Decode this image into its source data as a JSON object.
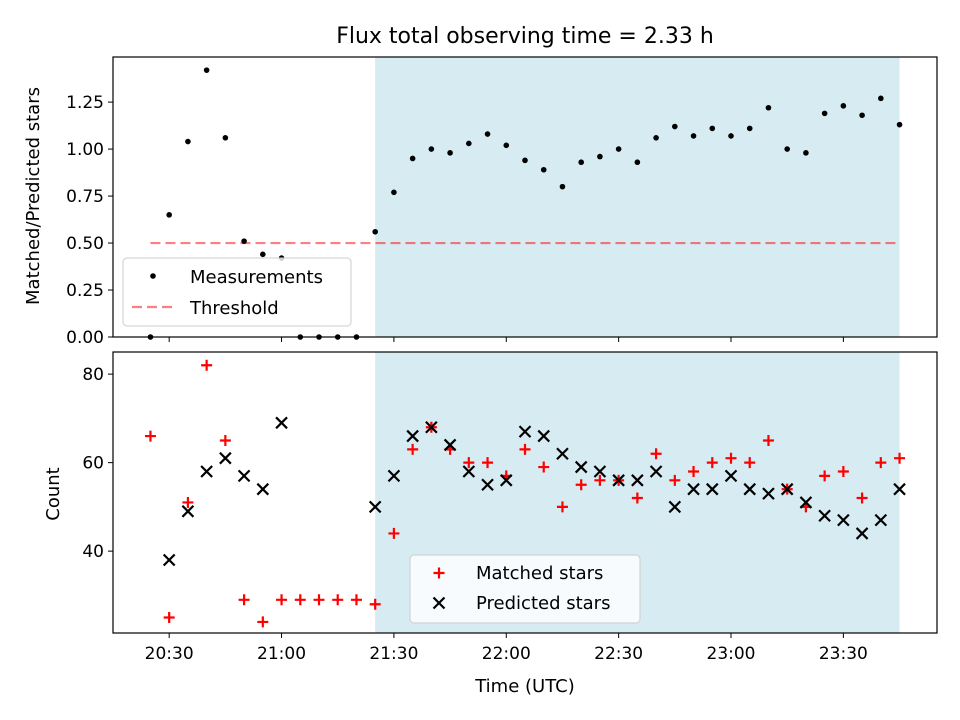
{
  "chart_data": [
    {
      "type": "scatter",
      "title": "Flux total observing time = 2.33 h",
      "xlabel": "",
      "ylabel": "Matched/Predicted stars",
      "x_ticks": [
        "20:30",
        "21:00",
        "21:30",
        "22:00",
        "22:30",
        "23:00",
        "23:30"
      ],
      "ylim": [
        0,
        1.49
      ],
      "y_ticks": [
        "0.00",
        "0.25",
        "0.50",
        "0.75",
        "1.00",
        "1.25"
      ],
      "shaded_interval": [
        "21:25",
        "23:45"
      ],
      "threshold": 0.5,
      "legend": {
        "position": "lower-left",
        "entries": [
          "Measurements",
          "Threshold"
        ]
      },
      "series": [
        {
          "name": "Measurements",
          "x": [
            "20:25",
            "20:30",
            "20:35",
            "20:40",
            "20:45",
            "20:50",
            "20:55",
            "21:00",
            "21:05",
            "21:10",
            "21:15",
            "21:20",
            "21:25",
            "21:30",
            "21:35",
            "21:40",
            "21:45",
            "21:50",
            "21:55",
            "22:00",
            "22:05",
            "22:10",
            "22:15",
            "22:20",
            "22:25",
            "22:30",
            "22:35",
            "22:40",
            "22:45",
            "22:50",
            "22:55",
            "23:00",
            "23:05",
            "23:10",
            "23:15",
            "23:20",
            "23:25",
            "23:30",
            "23:35",
            "23:40",
            "23:45"
          ],
          "values": [
            0.0,
            0.65,
            1.04,
            1.42,
            1.06,
            0.51,
            0.44,
            0.42,
            0.0,
            0.0,
            0.0,
            0.0,
            0.56,
            0.77,
            0.95,
            1.0,
            0.98,
            1.03,
            1.08,
            1.02,
            0.94,
            0.89,
            0.8,
            0.93,
            0.96,
            1.0,
            0.93,
            1.06,
            1.12,
            1.07,
            1.11,
            1.07,
            1.11,
            1.22,
            1.0,
            0.98,
            1.19,
            1.23,
            1.18,
            1.27,
            1.13
          ]
        },
        {
          "name": "Threshold",
          "x": [
            "20:25",
            "23:45"
          ],
          "values": [
            0.5,
            0.5
          ]
        }
      ]
    },
    {
      "type": "scatter",
      "xlabel": "Time (UTC)",
      "ylabel": "Count",
      "x_ticks": [
        "20:30",
        "21:00",
        "21:30",
        "22:00",
        "22:30",
        "23:00",
        "23:30"
      ],
      "ylim": [
        21.5,
        85
      ],
      "y_ticks": [
        "40",
        "60",
        "80"
      ],
      "shaded_interval": [
        "21:25",
        "23:45"
      ],
      "legend": {
        "position": "lower-center",
        "entries": [
          "Matched stars",
          "Predicted stars"
        ]
      },
      "series": [
        {
          "name": "Matched stars",
          "x": [
            "20:25",
            "20:30",
            "20:35",
            "20:40",
            "20:45",
            "20:50",
            "20:55",
            "21:00",
            "21:05",
            "21:10",
            "21:15",
            "21:20",
            "21:25",
            "21:30",
            "21:35",
            "21:40",
            "21:45",
            "21:50",
            "21:55",
            "22:00",
            "22:05",
            "22:10",
            "22:15",
            "22:20",
            "22:25",
            "22:30",
            "22:35",
            "22:40",
            "22:45",
            "22:50",
            "22:55",
            "23:00",
            "23:05",
            "23:10",
            "23:15",
            "23:20",
            "23:25",
            "23:30",
            "23:35",
            "23:40",
            "23:45"
          ],
          "values": [
            66,
            25,
            51,
            82,
            65,
            29,
            24,
            29,
            29,
            29,
            29,
            29,
            28,
            44,
            63,
            68,
            63,
            60,
            60,
            57,
            63,
            59,
            50,
            55,
            56,
            56,
            52,
            62,
            56,
            58,
            60,
            61,
            60,
            65,
            54,
            50,
            57,
            58,
            52,
            60,
            61
          ]
        },
        {
          "name": "Predicted stars",
          "x": [
            "20:30",
            "20:35",
            "20:40",
            "20:45",
            "20:50",
            "20:55",
            "21:00",
            "21:25",
            "21:30",
            "21:35",
            "21:40",
            "21:45",
            "21:50",
            "21:55",
            "22:00",
            "22:05",
            "22:10",
            "22:15",
            "22:20",
            "22:25",
            "22:30",
            "22:35",
            "22:40",
            "22:45",
            "22:50",
            "22:55",
            "23:00",
            "23:05",
            "23:10",
            "23:15",
            "23:20",
            "23:25",
            "23:30",
            "23:35",
            "23:40",
            "23:45"
          ],
          "values": [
            38,
            49,
            58,
            61,
            57,
            54,
            69,
            50,
            57,
            66,
            68,
            64,
            58,
            55,
            56,
            67,
            66,
            62,
            59,
            58,
            56,
            56,
            58,
            50,
            54,
            54,
            57,
            54,
            53,
            54,
            51,
            48,
            47,
            44,
            47,
            54
          ]
        }
      ]
    }
  ]
}
